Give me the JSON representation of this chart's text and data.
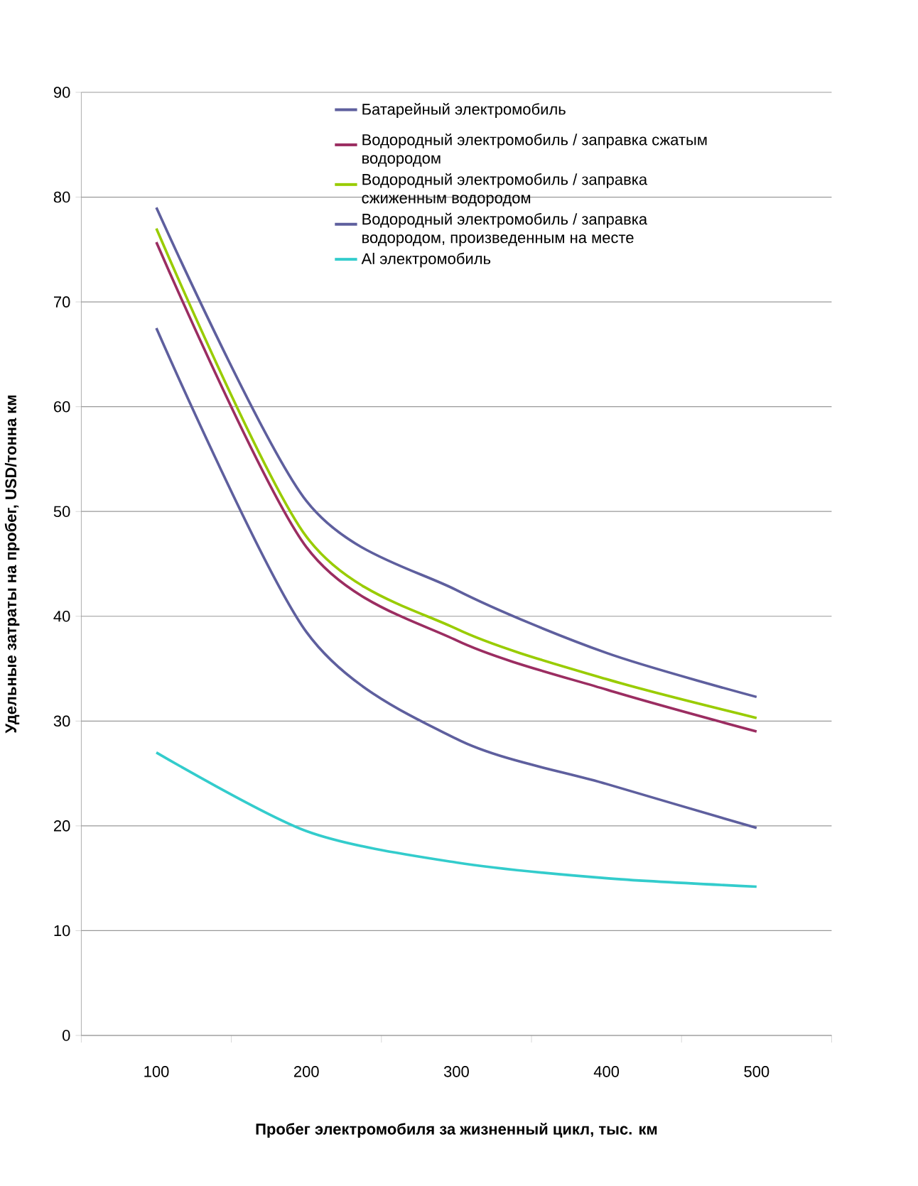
{
  "chart_data": {
    "type": "line",
    "xlabel": "Пробег электромобиля за жизненный цикл, тыс. км",
    "ylabel": "Удельные затраты на пробег, USD/тонна км",
    "categories": [
      "100",
      "200",
      "300",
      "400",
      "500"
    ],
    "ylim": [
      0,
      90
    ],
    "yticks": [
      0,
      10,
      20,
      30,
      40,
      50,
      60,
      70,
      80,
      90
    ],
    "grid": "y",
    "legend": "top right",
    "series": [
      {
        "name": "Батарейный электромобиль",
        "color": "#5e5f9e",
        "values": [
          79,
          51,
          42.5,
          36.5,
          32.3
        ]
      },
      {
        "name": "Водородный электромобиль / заправка сжатым водородом",
        "color": "#9b2d61",
        "values": [
          75.7,
          46.6,
          37.7,
          33,
          29
        ]
      },
      {
        "name": "Водородный электромобиль / заправка сжиженным водородом",
        "color": "#99cc00",
        "values": [
          77,
          47.6,
          38.8,
          34,
          30.3
        ]
      },
      {
        "name": "Водородный электромобиль / заправка водородом, произведенным на месте",
        "color": "#5e5f9e",
        "values": [
          67.5,
          38.5,
          28.3,
          24,
          19.8
        ]
      },
      {
        "name": "Al электромобиль",
        "color": "#33cccc",
        "values": [
          27,
          19.5,
          16.5,
          15,
          14.2
        ]
      }
    ]
  }
}
